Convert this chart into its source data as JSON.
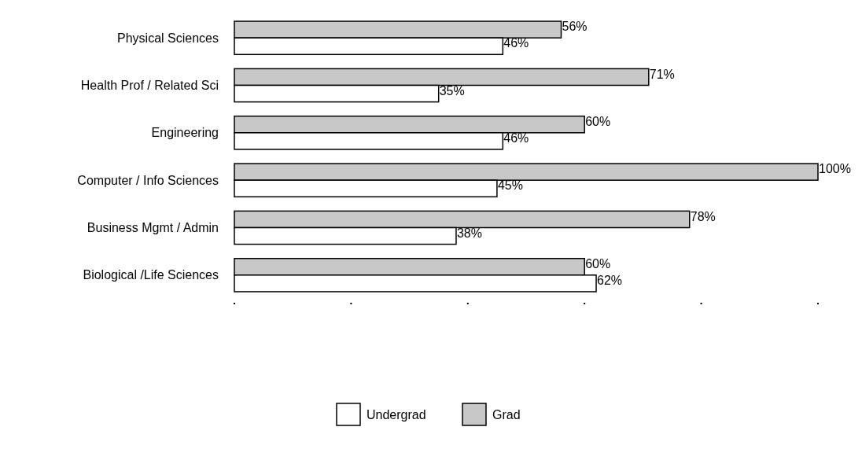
{
  "chart_data": {
    "type": "bar",
    "orientation": "horizontal",
    "categories": [
      "Physical Sciences",
      "Health Prof / Related Sci",
      "Engineering",
      "Computer / Info Sciences",
      "Business Mgmt / Admin",
      "Biological /Life Sciences"
    ],
    "series": [
      {
        "name": "Grad",
        "color": "#c8c8c8",
        "values": [
          56,
          71,
          60,
          100,
          78,
          60
        ],
        "value_labels": [
          "56%",
          "71%",
          "60%",
          "100%",
          "78%",
          "60%"
        ]
      },
      {
        "name": "Undergrad",
        "color": "#ffffff",
        "values": [
          46,
          35,
          46,
          45,
          38,
          62
        ],
        "value_labels": [
          "46%",
          "35%",
          "46%",
          "45%",
          "38%",
          "62%"
        ]
      }
    ],
    "xlim": [
      0,
      100
    ],
    "legend": "bottom"
  }
}
